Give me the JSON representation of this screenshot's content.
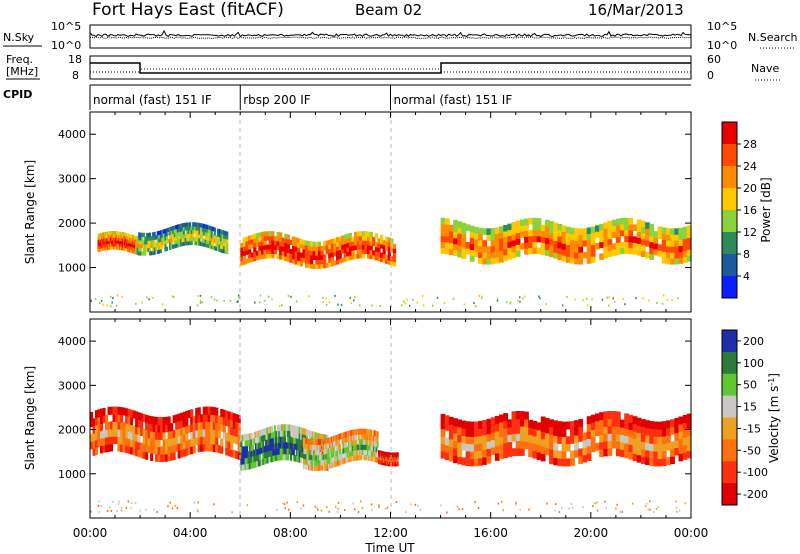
{
  "header": {
    "title": "Fort Hays East (fitACF)",
    "beam": "Beam 02",
    "date": "16/Mar/2013"
  },
  "noise_panel": {
    "left_label": "N.Sky",
    "right_label": "N.Search",
    "left_ticks": [
      "10^5",
      "10^0"
    ],
    "right_ticks": [
      "10^5",
      "10^0"
    ]
  },
  "freq_panel": {
    "left_label_line1": "Freq.",
    "left_label_line2": "[MHz]",
    "left_ticks": [
      "18",
      "8"
    ],
    "right_label": "Nave",
    "right_ticks": [
      "60",
      "0"
    ]
  },
  "cpid": {
    "label": "CPID",
    "segments": [
      {
        "name": "normal (fast) 151 IF",
        "start_hour": 0,
        "end_hour": 6
      },
      {
        "name": "rbsp 200 IF",
        "start_hour": 6,
        "end_hour": 12
      },
      {
        "name": "normal (fast) 151 IF",
        "start_hour": 12,
        "end_hour": 24
      }
    ]
  },
  "x_axis": {
    "label": "Time UT",
    "ticks": [
      "00:00",
      "04:00",
      "08:00",
      "12:00",
      "16:00",
      "20:00",
      "00:00"
    ]
  },
  "power_panel": {
    "ylabel": "Slant Range [km]",
    "yticks": [
      "4000",
      "3000",
      "2000",
      "1000"
    ],
    "colorbar_label": "Power [dB]",
    "colorbar_ticks": [
      "28",
      "24",
      "20",
      "16",
      "12",
      "8",
      "4"
    ],
    "colors": [
      "#e80000",
      "#ff4a00",
      "#ff8c00",
      "#ffc800",
      "#8cd23c",
      "#2e8c5a",
      "#1e5aa0",
      "#0a1eff"
    ]
  },
  "velocity_panel": {
    "ylabel": "Slant Range [km]",
    "yticks": [
      "4000",
      "3000",
      "2000",
      "1000"
    ],
    "colorbar_label": "Velocity [m s^-1]",
    "colorbar_ticks": [
      "200",
      "100",
      "50",
      "15",
      "-15",
      "-50",
      "-100",
      "-200"
    ],
    "colors": [
      "#1e2ea8",
      "#2e7a3a",
      "#5fc830",
      "#c8c8c0",
      "#f0a020",
      "#ff7010",
      "#ff3010",
      "#e00000"
    ]
  },
  "chart_data": {
    "type": "heatmap",
    "x_range_hours": [
      0,
      24
    ],
    "y_range_km": [
      0,
      4500
    ],
    "grid": false,
    "power_bands": [
      {
        "range_km": [
          1300,
          1700
        ],
        "start_hour": 0.3,
        "end_hour": 2.0,
        "power_db": 28
      },
      {
        "range_km": [
          1400,
          1900
        ],
        "start_hour": 1.8,
        "end_hour": 5.5,
        "power_db": 16
      },
      {
        "range_km": [
          1100,
          1700
        ],
        "start_hour": 6.0,
        "end_hour": 12.2,
        "power_db": 28
      },
      {
        "range_km": [
          1200,
          2000
        ],
        "start_hour": 14.0,
        "end_hour": 24.0,
        "power_db": 24
      }
    ],
    "velocity_bands": [
      {
        "range_km": [
          1400,
          2400
        ],
        "start_hour": 0.0,
        "end_hour": 6.0,
        "velocity": -15
      },
      {
        "range_km": [
          1200,
          2000
        ],
        "start_hour": 6.0,
        "end_hour": 9.5,
        "velocity": 200
      },
      {
        "range_km": [
          1200,
          1900
        ],
        "start_hour": 8.5,
        "end_hour": 11.5,
        "velocity": 50
      },
      {
        "range_km": [
          1300,
          1600
        ],
        "start_hour": 11.5,
        "end_hour": 12.3,
        "velocity": -50
      },
      {
        "range_km": [
          1300,
          2300
        ],
        "start_hour": 14.0,
        "end_hour": 24.0,
        "velocity": -15
      }
    ]
  }
}
